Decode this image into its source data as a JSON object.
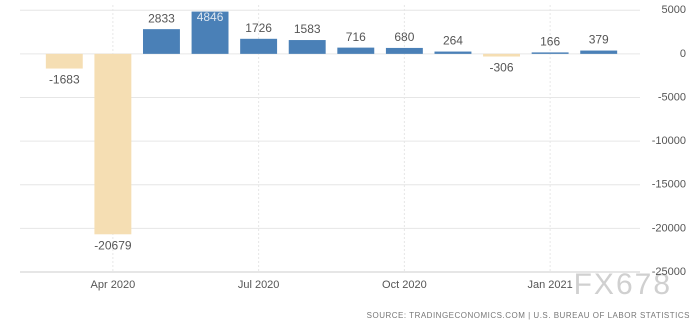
{
  "chart_data": {
    "type": "bar",
    "categories": [
      null,
      "Apr 2020",
      null,
      null,
      "Jul 2020",
      null,
      null,
      "Oct 2020",
      null,
      null,
      "Jan 2021",
      null
    ],
    "values": [
      -1683,
      -20679,
      2833,
      4846,
      1726,
      1583,
      716,
      680,
      264,
      -306,
      166,
      379
    ],
    "positive_color": "#4a80b7",
    "negative_color": "#f5deb3",
    "ylim": [
      -25000,
      5600
    ],
    "yticks": [
      5000,
      0,
      -5000,
      -10000,
      -15000,
      -20000,
      -25000
    ],
    "grid": true,
    "source": "SOURCE: TRADINGECONOMICS.COM | U.S. BUREAU OF LABOR STATISTICS",
    "watermark": "FX678"
  }
}
